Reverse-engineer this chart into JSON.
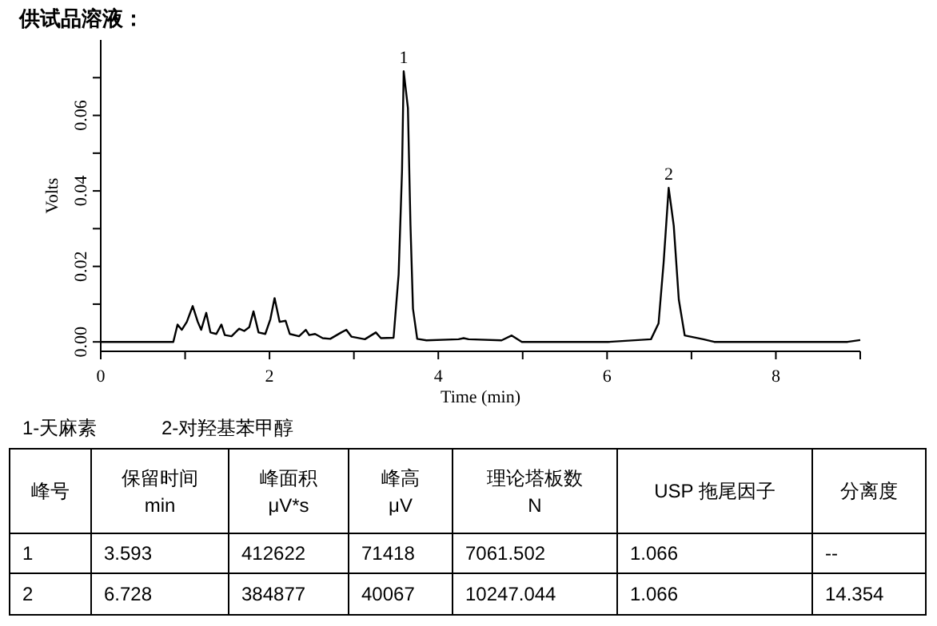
{
  "chart_data": [
    {
      "type": "line",
      "title": "供试品溶液：",
      "xlabel": "Time (min)",
      "ylabel": "Volts",
      "xlim": [
        0,
        9
      ],
      "ylim": [
        -0.0025,
        0.08
      ],
      "xticks": [
        0,
        {
          "value": 1,
          "label": null
        },
        2,
        {
          "value": 3,
          "label": null
        },
        4,
        {
          "value": 5,
          "label": null
        },
        6,
        {
          "value": 7,
          "label": null
        },
        8,
        {
          "value": 9,
          "label": null
        }
      ],
      "yticks": [
        {
          "value": 0,
          "label": "0.00"
        },
        {
          "value": 0.01,
          "label": null
        },
        {
          "value": 0.02,
          "label": "0.02"
        },
        {
          "value": 0.03,
          "label": null
        },
        {
          "value": 0.04,
          "label": "0.04"
        },
        {
          "value": 0.05,
          "label": null
        },
        {
          "value": 0.06,
          "label": "0.06"
        },
        {
          "value": 0.07,
          "label": null
        }
      ],
      "grid": false,
      "marker": "none",
      "line_style": "solid",
      "series": [
        {
          "color": "#000000",
          "x": [
            0,
            0.86,
            0.91,
            0.96,
            1.02,
            1.09,
            1.15,
            1.19,
            1.25,
            1.3,
            1.37,
            1.43,
            1.47,
            1.55,
            1.64,
            1.7,
            1.76,
            1.81,
            1.87,
            1.95,
            2.01,
            2.06,
            2.12,
            2.19,
            2.24,
            2.35,
            2.43,
            2.47,
            2.54,
            2.63,
            2.72,
            2.85,
            2.91,
            2.97,
            3.13,
            3.26,
            3.32,
            3.47,
            3.53,
            3.57,
            3.59,
            3.64,
            3.67,
            3.7,
            3.75,
            3.86,
            4.24,
            4.3,
            4.36,
            4.75,
            4.87,
            4.99,
            6.01,
            6.52,
            6.61,
            6.67,
            6.73,
            6.79,
            6.85,
            6.92,
            7.14,
            7.27,
            8.85,
            9
          ],
          "values": [
            0,
            0,
            0.0046,
            0.0032,
            0.0053,
            0.0095,
            0.0053,
            0.0032,
            0.0077,
            0.0025,
            0.0021,
            0.0046,
            0.0018,
            0.0015,
            0.0035,
            0.0029,
            0.0039,
            0.0081,
            0.0025,
            0.0021,
            0.006,
            0.0116,
            0.0053,
            0.0056,
            0.0021,
            0.0015,
            0.0032,
            0.0018,
            0.0021,
            0.001,
            0.0008,
            0.0025,
            0.0032,
            0.0014,
            0.0007,
            0.0025,
            0.001,
            0.0011,
            0.0179,
            0.0452,
            0.0717,
            0.062,
            0.0312,
            0.0088,
            0.0008,
            0.0004,
            0.0007,
            0.001,
            0.0007,
            0.0004,
            0.0017,
            0,
            0,
            0.0007,
            0.0049,
            0.021,
            0.0408,
            0.0308,
            0.0112,
            0.0017,
            0.0007,
            0,
            0,
            0.0005
          ]
        }
      ],
      "annotations": [
        {
          "text": "1",
          "x": 3.59,
          "y": 0.0717
        },
        {
          "text": "2",
          "x": 6.73,
          "y": 0.0408
        }
      ]
    },
    {
      "type": "other",
      "annotations": [
        "1-天麻素",
        "2-对羟基苯甲醇"
      ],
      "categories": [
        "峰号",
        "保留时间\nmin",
        "峰面积\nμV*s",
        "峰高\nμV",
        "理论塔板数\nN",
        "USP 拖尾因子",
        "分离度"
      ],
      "cell_labels": [
        [
          "1",
          "3.593",
          "412622",
          "71418",
          "7061.502",
          "1.066",
          "--"
        ],
        [
          "2",
          "6.728",
          "384877",
          "40067",
          "10247.044",
          "1.066",
          "14.354"
        ]
      ]
    }
  ]
}
